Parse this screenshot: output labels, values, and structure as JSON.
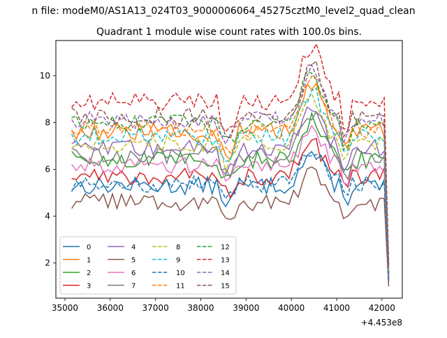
{
  "suptitle": "n file: modeM0/AS1A13_024T03_9000006064_45275cztM0_level2_quad_clean",
  "chart_data": {
    "type": "line",
    "title": "Quadrant 1 module wise count rates with 100.0s bins.",
    "xlabel": "",
    "ylabel": "",
    "x_offset_text": "+4.453e8",
    "xlim": [
      34800,
      42450
    ],
    "ylim": [
      0.5,
      11.5
    ],
    "x_ticks": [
      35000,
      36000,
      37000,
      38000,
      39000,
      40000,
      41000,
      42000
    ],
    "x_tick_labels": [
      "35000",
      "36000",
      "37000",
      "38000",
      "39000",
      "40000",
      "41000",
      "42000"
    ],
    "y_ticks": [
      2,
      4,
      6,
      8,
      10
    ],
    "y_tick_labels": [
      "2",
      "4",
      "6",
      "8",
      "10"
    ],
    "grid": false,
    "legend_position": "lower-left",
    "legend_columns": 4,
    "x_start": 35150,
    "x_step": 100,
    "series": [
      {
        "name": "0",
        "color": "#1f77b4",
        "dash": "solid",
        "base": 5.3,
        "final": 1.2
      },
      {
        "name": "1",
        "color": "#ff7f0e",
        "dash": "solid",
        "base": 7.6,
        "final": 1.6
      },
      {
        "name": "2",
        "color": "#2ca02c",
        "dash": "solid",
        "base": 6.4,
        "final": 1.4
      },
      {
        "name": "3",
        "color": "#d62728",
        "dash": "solid",
        "base": 5.7,
        "final": 1.3
      },
      {
        "name": "4",
        "color": "#9467bd",
        "dash": "solid",
        "base": 6.9,
        "final": 1.5
      },
      {
        "name": "5",
        "color": "#8c564b",
        "dash": "solid",
        "base": 4.6,
        "final": 1.0
      },
      {
        "name": "6",
        "color": "#e377c2",
        "dash": "solid",
        "base": 6.2,
        "final": 1.4
      },
      {
        "name": "7",
        "color": "#7f7f7f",
        "dash": "solid",
        "base": 6.6,
        "final": 1.5
      },
      {
        "name": "8",
        "color": "#bcbd22",
        "dash": "dashed",
        "base": 7.1,
        "final": 1.6
      },
      {
        "name": "9",
        "color": "#17becf",
        "dash": "dashed",
        "base": 7.4,
        "final": 1.6
      },
      {
        "name": "10",
        "color": "#1f77b4",
        "dash": "dashed",
        "base": 5.4,
        "final": 1.2
      },
      {
        "name": "11",
        "color": "#ff7f0e",
        "dash": "dashed",
        "base": 7.7,
        "final": 1.7
      },
      {
        "name": "12",
        "color": "#2ca02c",
        "dash": "dashed",
        "base": 8.0,
        "final": 1.8
      },
      {
        "name": "13",
        "color": "#d62728",
        "dash": "dashed",
        "base": 8.9,
        "final": 2.0
      },
      {
        "name": "14",
        "color": "#9467bd",
        "dash": "dashed",
        "base": 8.1,
        "final": 1.8
      },
      {
        "name": "15",
        "color": "#8c564b",
        "dash": "dashed",
        "base": 8.3,
        "final": 1.9
      }
    ]
  }
}
